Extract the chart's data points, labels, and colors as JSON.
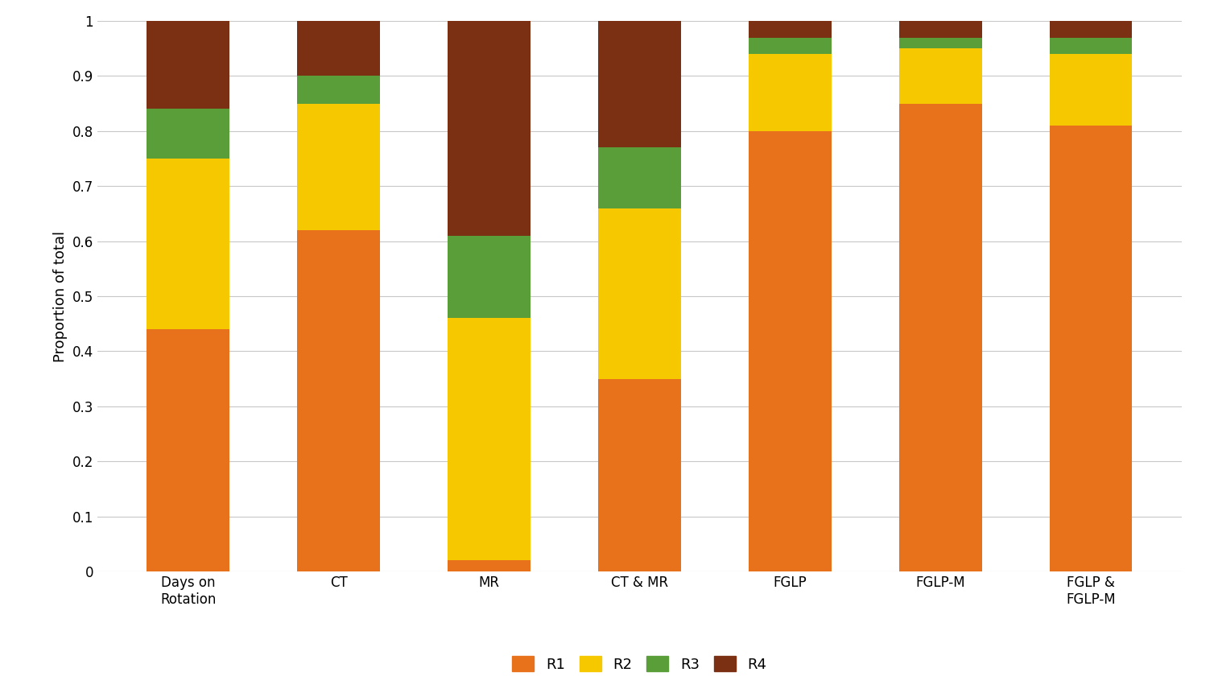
{
  "categories": [
    "Days on\nRotation",
    "CT",
    "MR",
    "CT & MR",
    "FGLP",
    "FGLP-M",
    "FGLP &\nFGLP-M"
  ],
  "series": {
    "R1": [
      0.44,
      0.62,
      0.02,
      0.35,
      0.8,
      0.85,
      0.81
    ],
    "R2": [
      0.31,
      0.23,
      0.44,
      0.31,
      0.14,
      0.1,
      0.13
    ],
    "R3": [
      0.09,
      0.05,
      0.15,
      0.11,
      0.03,
      0.02,
      0.03
    ],
    "R4": [
      0.16,
      0.1,
      0.39,
      0.23,
      0.03,
      0.03,
      0.03
    ]
  },
  "colors": {
    "R1": "#E8721C",
    "R2": "#F5C800",
    "R3": "#5A9E3A",
    "R4": "#7B3014"
  },
  "ylabel": "Proportion of total",
  "ylim": [
    0,
    1
  ],
  "yticks": [
    0,
    0.1,
    0.2,
    0.3,
    0.4,
    0.5,
    0.6,
    0.7,
    0.8,
    0.9,
    1
  ],
  "legend_order": [
    "R1",
    "R2",
    "R3",
    "R4"
  ],
  "bar_width": 0.55,
  "background_color": "#ffffff",
  "grid_color": "#c8c8c8",
  "figsize": [
    15.13,
    8.66
  ],
  "dpi": 100
}
